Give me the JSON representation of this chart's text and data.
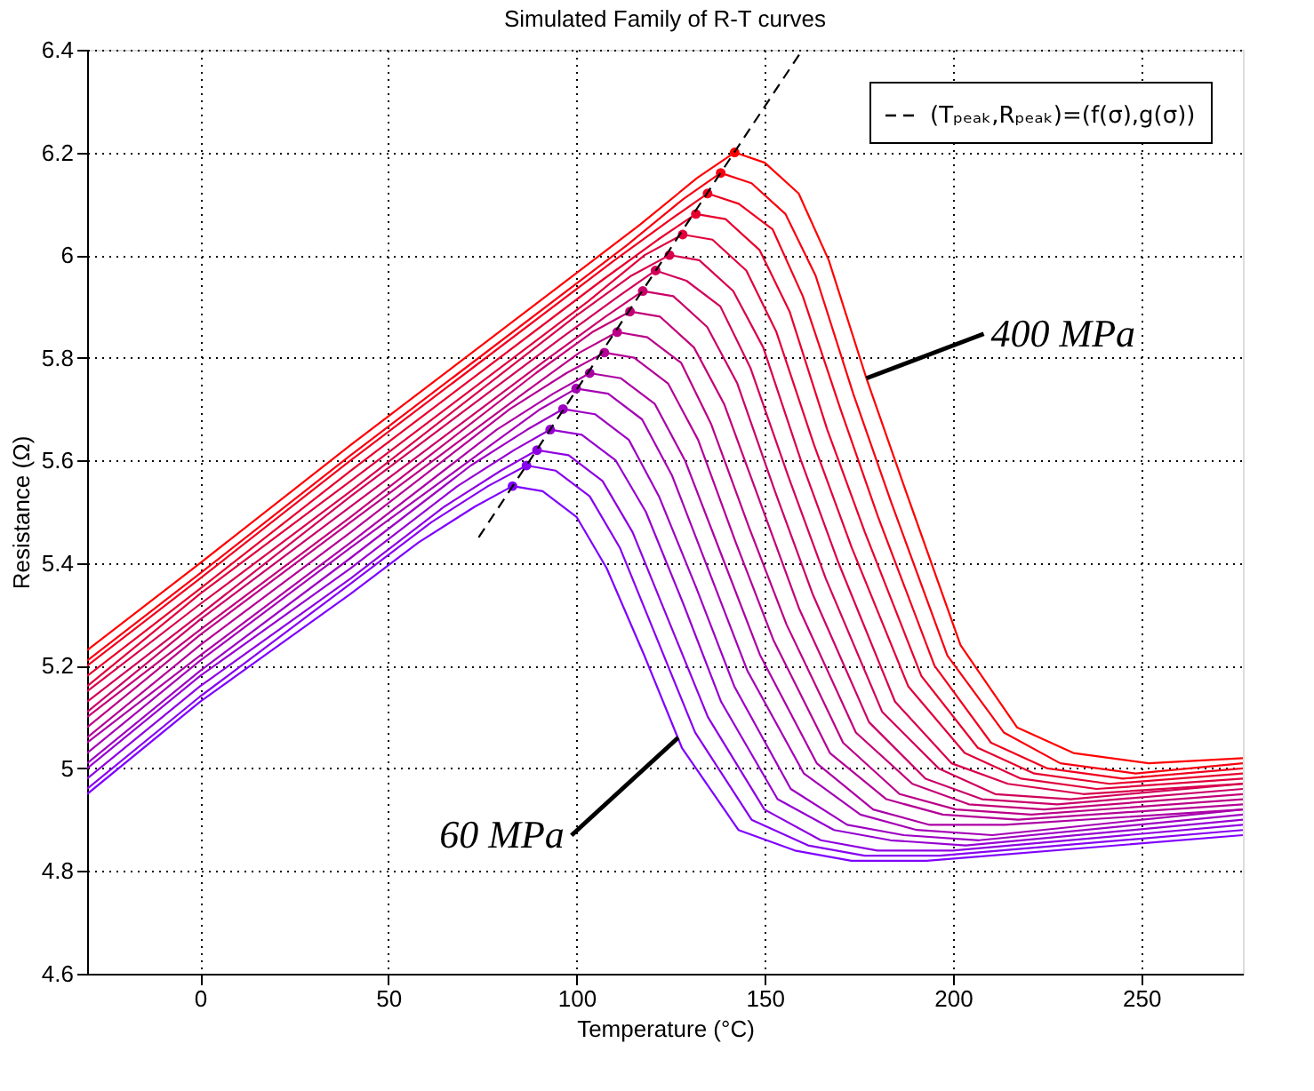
{
  "chart_data": {
    "type": "line",
    "title": "Simulated Family of R-T curves",
    "xlabel": "Temperature (°C)",
    "ylabel": "Resistance (Ω)",
    "xlim": [
      -30,
      277
    ],
    "ylim": [
      4.6,
      6.4
    ],
    "xticks": [
      0,
      50,
      100,
      150,
      200,
      250
    ],
    "yticks": [
      4.6,
      4.8,
      5,
      5.2,
      5.4,
      5.6,
      5.8,
      6,
      6.2,
      6.4
    ],
    "grid": true,
    "legend": "top right",
    "marker": "none",
    "line_style": "solid",
    "annotations": [
      {
        "text": "400 MPa",
        "x": 177,
        "y": 5.76
      },
      {
        "text": "60 MPa",
        "x": 127,
        "y": 5.06
      }
    ],
    "series": [
      {
        "color": "#7f00ff",
        "x": [
          -30,
          0,
          40,
          58,
          73,
          83.0,
          91,
          100,
          108,
          118,
          128,
          143,
          158,
          173,
          193,
          277
        ],
        "values": [
          4.95,
          5.13,
          5.34,
          5.44,
          5.51,
          5.55,
          5.54,
          5.49,
          5.39,
          5.22,
          5.04,
          4.88,
          4.84,
          4.82,
          4.82,
          4.87
        ]
      },
      {
        "color": "#8700f0",
        "x": [
          -30,
          0,
          40,
          61.5,
          76.5,
          86.7,
          94.5,
          103.5,
          111.5,
          121.5,
          131.5,
          146.5,
          161.5,
          176.5,
          196.5,
          277
        ],
        "values": [
          4.96,
          5.14,
          5.36,
          5.48,
          5.55,
          5.59,
          5.58,
          5.53,
          5.43,
          5.25,
          5.07,
          4.9,
          4.85,
          4.83,
          4.83,
          4.88
        ]
      },
      {
        "color": "#8e00e1",
        "x": [
          -30,
          0,
          40,
          64.9,
          79.9,
          89.5,
          97.9,
          106.9,
          114.9,
          124.9,
          134.9,
          149.9,
          164.9,
          179.9,
          199.9,
          277
        ],
        "values": [
          4.98,
          5.16,
          5.37,
          5.51,
          5.58,
          5.62,
          5.61,
          5.56,
          5.46,
          5.28,
          5.1,
          4.92,
          4.86,
          4.84,
          4.84,
          4.89
        ]
      },
      {
        "color": "#9600d2",
        "x": [
          -30,
          0,
          40,
          68.4,
          83.4,
          93.0,
          101.4,
          110.4,
          118.4,
          128.4,
          138.4,
          153.4,
          168.4,
          183.4,
          203.4,
          277
        ],
        "values": [
          5.0,
          5.18,
          5.39,
          5.55,
          5.62,
          5.66,
          5.65,
          5.6,
          5.5,
          5.32,
          5.13,
          4.94,
          4.88,
          4.86,
          4.85,
          4.9
        ]
      },
      {
        "color": "#9d00c3",
        "x": [
          -30,
          0,
          40,
          71.9,
          86.9,
          96.4,
          104.9,
          113.9,
          121.9,
          131.9,
          141.9,
          156.9,
          171.9,
          186.9,
          206.9,
          277
        ],
        "values": [
          5.01,
          5.19,
          5.41,
          5.59,
          5.66,
          5.7,
          5.69,
          5.64,
          5.53,
          5.35,
          5.16,
          4.96,
          4.89,
          4.87,
          4.86,
          4.91
        ]
      },
      {
        "color": "#a500b4",
        "x": [
          -30,
          0,
          40,
          75.4,
          90.4,
          99.9,
          108.4,
          117.4,
          125.4,
          135.4,
          145.4,
          160.4,
          175.4,
          190.4,
          210.4,
          277
        ],
        "values": [
          5.03,
          5.21,
          5.43,
          5.62,
          5.7,
          5.74,
          5.73,
          5.68,
          5.57,
          5.38,
          5.19,
          4.99,
          4.91,
          4.88,
          4.87,
          4.92
        ]
      },
      {
        "color": "#ac00a5",
        "x": [
          -30,
          0,
          40,
          78.8,
          93.8,
          103.5,
          111.8,
          120.8,
          128.8,
          138.8,
          148.8,
          163.8,
          178.8,
          193.8,
          213.8,
          277
        ],
        "values": [
          5.05,
          5.22,
          5.44,
          5.66,
          5.73,
          5.77,
          5.76,
          5.71,
          5.6,
          5.41,
          5.22,
          5.01,
          4.92,
          4.89,
          4.89,
          4.92
        ]
      },
      {
        "color": "#b40096",
        "x": [
          -30,
          0,
          40,
          82.3,
          97.3,
          107.4,
          115.3,
          124.3,
          132.3,
          142.3,
          152.3,
          167.3,
          182.3,
          197.3,
          217.3,
          277
        ],
        "values": [
          5.06,
          5.24,
          5.46,
          5.7,
          5.77,
          5.81,
          5.8,
          5.75,
          5.64,
          5.44,
          5.25,
          5.03,
          4.94,
          4.91,
          4.9,
          4.93
        ]
      },
      {
        "color": "#bb0087",
        "x": [
          -30,
          0,
          40,
          85.8,
          100.8,
          110.8,
          118.8,
          127.8,
          135.8,
          145.8,
          155.8,
          170.8,
          185.8,
          200.8,
          220.8,
          277
        ],
        "values": [
          5.08,
          5.26,
          5.48,
          5.73,
          5.81,
          5.85,
          5.84,
          5.79,
          5.67,
          5.47,
          5.28,
          5.05,
          4.95,
          4.92,
          4.91,
          4.94
        ]
      },
      {
        "color": "#c30078",
        "x": [
          -30,
          0,
          40,
          89.2,
          104.2,
          114.2,
          122.2,
          131.2,
          139.2,
          149.2,
          159.2,
          174.2,
          189.2,
          204.2,
          224.2,
          277
        ],
        "values": [
          5.1,
          5.27,
          5.49,
          5.77,
          5.85,
          5.89,
          5.88,
          5.82,
          5.71,
          5.51,
          5.31,
          5.07,
          4.97,
          4.93,
          4.92,
          4.95
        ]
      },
      {
        "color": "#ca0069",
        "x": [
          -30,
          0,
          40,
          92.7,
          107.7,
          117.6,
          125.7,
          134.7,
          142.7,
          152.7,
          162.7,
          177.7,
          192.7,
          207.7,
          227.7,
          277
        ],
        "values": [
          5.11,
          5.29,
          5.51,
          5.8,
          5.88,
          5.93,
          5.92,
          5.86,
          5.75,
          5.54,
          5.34,
          5.09,
          4.98,
          4.94,
          4.93,
          4.96
        ]
      },
      {
        "color": "#d2005a",
        "x": [
          -30,
          0,
          40,
          96.2,
          111.2,
          121.0,
          129.2,
          138.2,
          146.2,
          156.2,
          166.2,
          181.2,
          196.2,
          211.2,
          231.2,
          277
        ],
        "values": [
          5.13,
          5.3,
          5.53,
          5.84,
          5.92,
          5.97,
          5.95,
          5.9,
          5.78,
          5.57,
          5.37,
          5.11,
          5.0,
          4.95,
          4.94,
          4.97
        ]
      },
      {
        "color": "#d9004b",
        "x": [
          -30,
          0,
          40,
          99.6,
          114.6,
          124.7,
          132.6,
          141.6,
          149.6,
          159.6,
          169.6,
          184.6,
          199.6,
          214.6,
          234.6,
          277
        ],
        "values": [
          5.15,
          5.32,
          5.54,
          5.88,
          5.96,
          6.0,
          5.99,
          5.93,
          5.82,
          5.6,
          5.4,
          5.13,
          5.01,
          4.97,
          4.95,
          4.97
        ]
      },
      {
        "color": "#e1003c",
        "x": [
          -30,
          0,
          40,
          103.1,
          118.1,
          128.2,
          136.1,
          145.1,
          153.1,
          163.1,
          173.1,
          188.1,
          203.1,
          218.1,
          238.1,
          277
        ],
        "values": [
          5.16,
          5.34,
          5.56,
          5.91,
          6.0,
          6.04,
          6.03,
          5.97,
          5.85,
          5.63,
          5.43,
          5.16,
          5.03,
          4.98,
          4.96,
          4.98
        ]
      },
      {
        "color": "#e8002d",
        "x": [
          -30,
          0,
          40,
          106.6,
          121.6,
          131.7,
          139.6,
          148.6,
          156.6,
          166.6,
          176.6,
          191.6,
          206.6,
          221.6,
          241.6,
          277
        ],
        "values": [
          5.18,
          5.35,
          5.58,
          5.95,
          6.03,
          6.08,
          6.07,
          6.01,
          5.89,
          5.66,
          5.46,
          5.18,
          5.04,
          4.99,
          4.97,
          4.99
        ]
      },
      {
        "color": "#f0001e",
        "x": [
          -30,
          0,
          40,
          110.1,
          125.1,
          134.8,
          143.1,
          152.1,
          160.1,
          170.1,
          180.1,
          195.1,
          210.1,
          225.1,
          245.1,
          277
        ],
        "values": [
          5.2,
          5.37,
          5.6,
          5.99,
          6.07,
          6.12,
          6.1,
          6.05,
          5.92,
          5.7,
          5.49,
          5.2,
          5.05,
          5.0,
          4.98,
          5.0
        ]
      },
      {
        "color": "#f7000f",
        "x": [
          -30,
          0,
          40,
          113.5,
          128.5,
          138.3,
          146.5,
          155.5,
          163.5,
          173.5,
          183.5,
          198.5,
          213.5,
          228.5,
          248.5,
          277
        ],
        "values": [
          5.21,
          5.38,
          5.61,
          6.02,
          6.11,
          6.16,
          6.14,
          6.08,
          5.96,
          5.73,
          5.52,
          5.22,
          5.07,
          5.01,
          4.99,
          5.01
        ]
      },
      {
        "color": "#ff0000",
        "x": [
          -30,
          0,
          40,
          117,
          132,
          142.0,
          150,
          159,
          167,
          177,
          187,
          202,
          217,
          232,
          252,
          277
        ],
        "values": [
          5.23,
          5.4,
          5.63,
          6.06,
          6.15,
          6.2,
          6.18,
          6.12,
          5.99,
          5.76,
          5.55,
          5.24,
          5.08,
          5.03,
          5.01,
          5.02
        ]
      },
      {
        "type": "scatter",
        "marker": "circle",
        "x": [
          83.0,
          86.7,
          89.5,
          93.0,
          96.4,
          99.9,
          103.5,
          107.4,
          110.8,
          114.2,
          117.6,
          121.0,
          124.7,
          128.2,
          131.7,
          134.8,
          138.3,
          142.0
        ],
        "values": [
          5.55,
          5.59,
          5.62,
          5.66,
          5.7,
          5.74,
          5.77,
          5.81,
          5.85,
          5.89,
          5.93,
          5.97,
          6.0,
          6.04,
          6.08,
          6.12,
          6.16,
          6.2
        ],
        "colors": [
          "#7f00ff",
          "#8700f0",
          "#8e00e1",
          "#9600d2",
          "#9d00c3",
          "#a500b4",
          "#ac00a5",
          "#b40096",
          "#bb0087",
          "#c30078",
          "#ca0069",
          "#d2005a",
          "#d9004b",
          "#e1003c",
          "#e8002d",
          "#f0001e",
          "#f7000f",
          "#ff0000"
        ]
      },
      {
        "name": "(Tₚₑₐₖ,Rₚₑₐₖ)=(f(σ),g(σ))",
        "color": "#000000",
        "line_style": "dashed",
        "x": [
          74,
          160
        ],
        "values": [
          5.45,
          6.4
        ]
      }
    ]
  }
}
